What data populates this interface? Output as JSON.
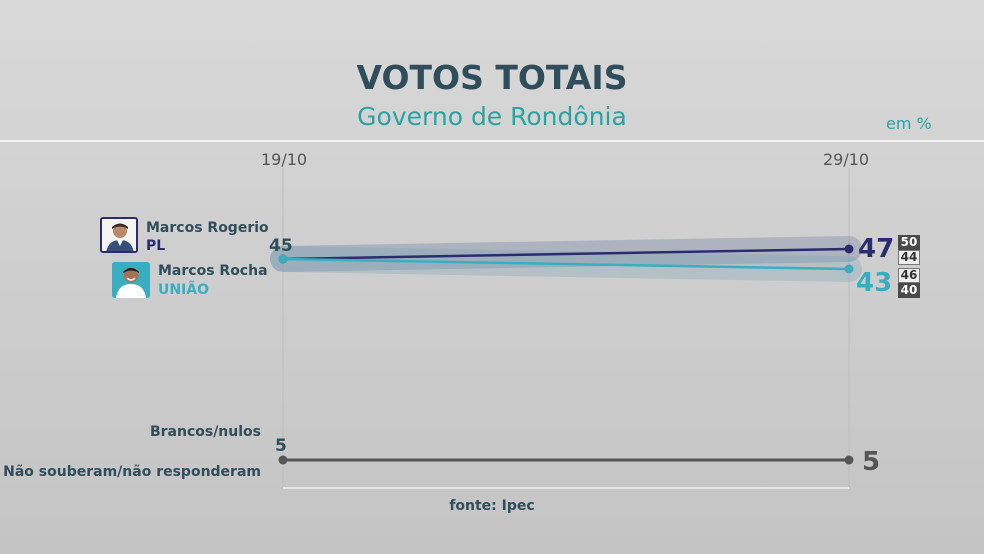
{
  "header": {
    "title": "VOTOS TOTAIS",
    "subtitle": "Governo de Rondônia",
    "unit": "em %"
  },
  "source": "fonte: Ipec",
  "chart_data": {
    "type": "line",
    "title": "VOTOS TOTAIS",
    "subtitle": "Governo de Rondônia",
    "ylabel": "em %",
    "x": [
      "19/10",
      "29/10"
    ],
    "ylim": [
      0,
      60
    ],
    "grid": false,
    "series": [
      {
        "name": "Marcos Rogerio",
        "party": "PL",
        "values": [
          45,
          47
        ],
        "start_label": "45",
        "end_label": "47",
        "error_range": {
          "high": "50",
          "low": "44"
        },
        "color": "#2c2b6e"
      },
      {
        "name": "Marcos Rocha",
        "party": "UNIÃO",
        "values": [
          45,
          43
        ],
        "end_label": "43",
        "error_range": {
          "high": "46",
          "low": "40"
        },
        "color": "#3aaec0"
      },
      {
        "name": "Brancos/nulos",
        "values": [
          5,
          5
        ],
        "start_label": "5",
        "end_label": "5",
        "color": "#555555"
      },
      {
        "name": "Não souberam/não responderam",
        "values": [
          null,
          null
        ],
        "color": "#555555"
      }
    ]
  }
}
